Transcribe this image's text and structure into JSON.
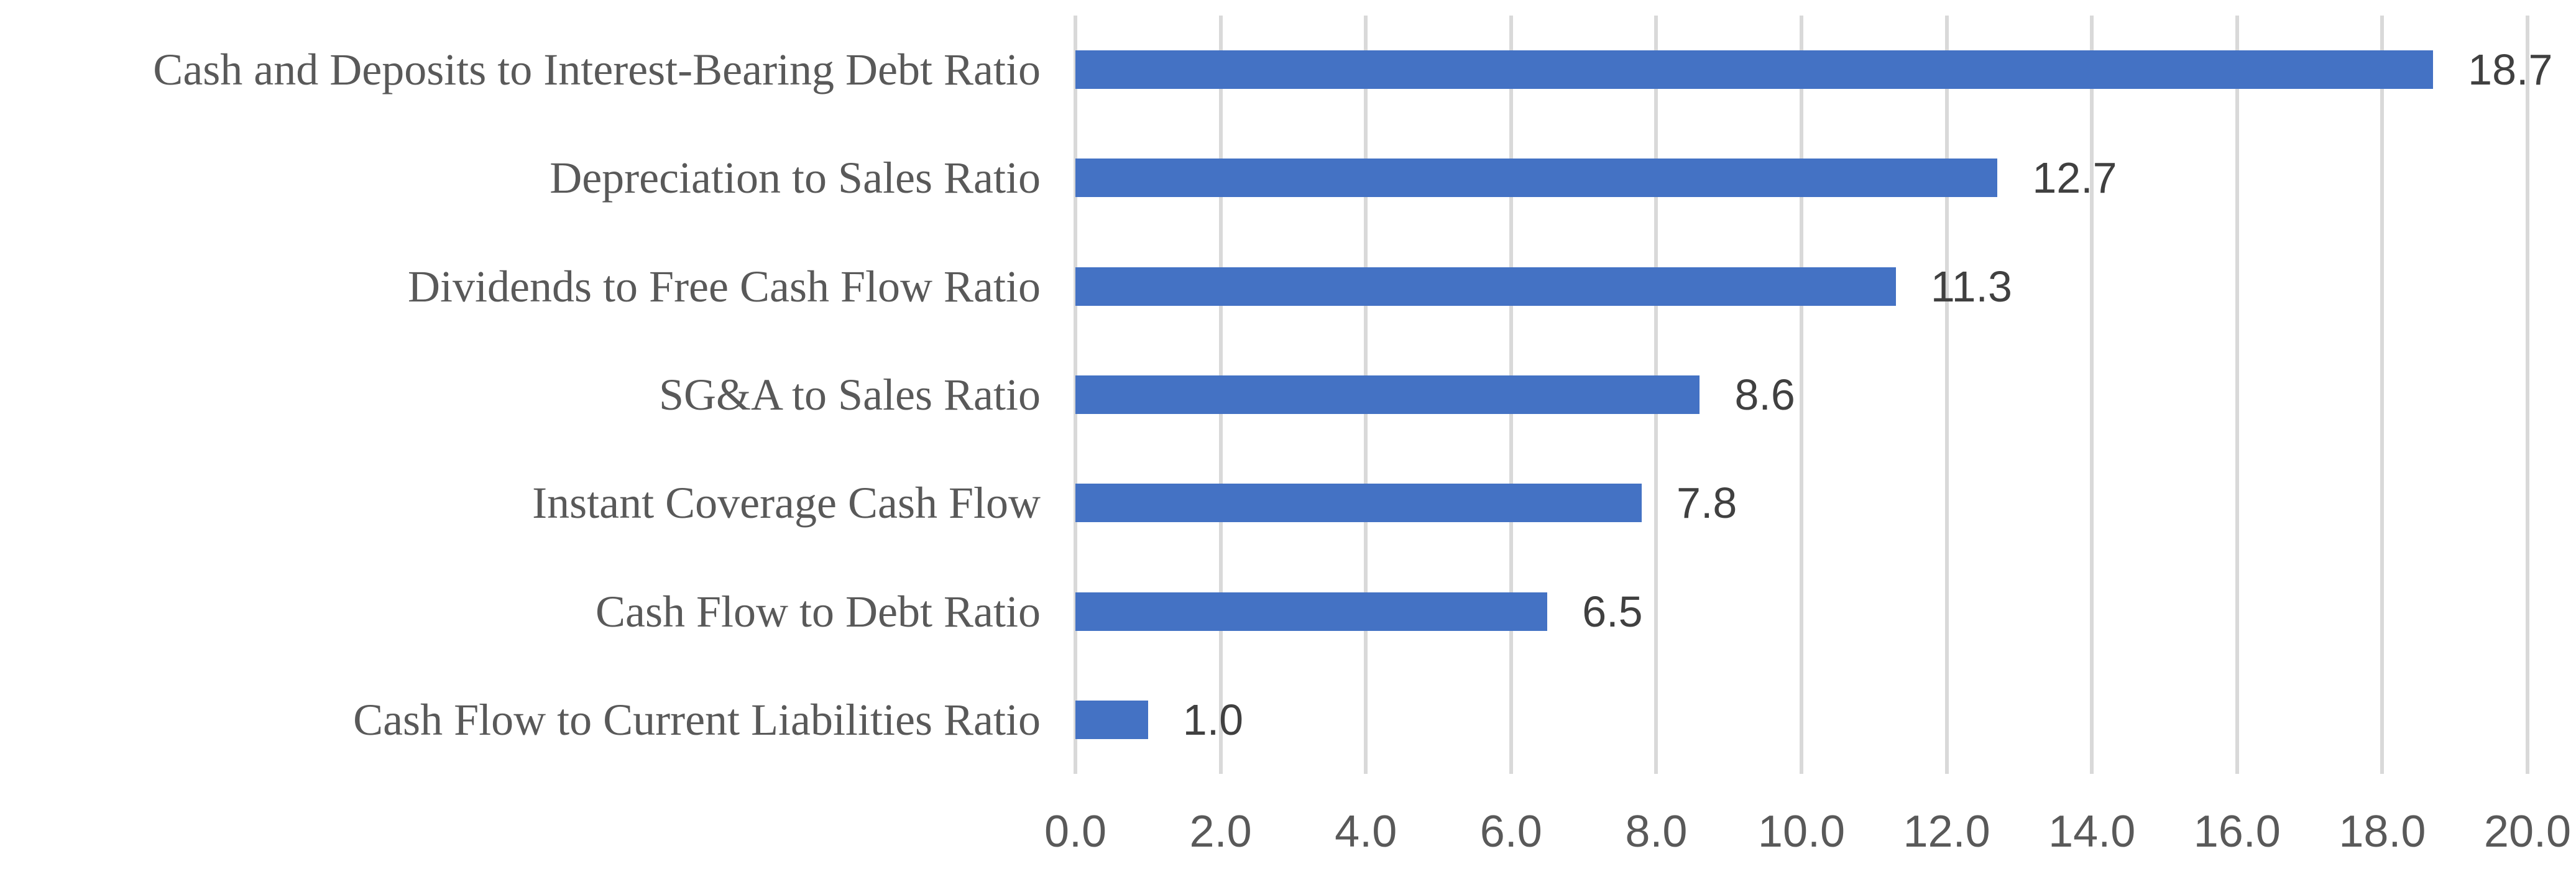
{
  "chart_data": {
    "type": "bar",
    "orientation": "horizontal",
    "title": "",
    "xlabel": "",
    "ylabel": "",
    "legend": "none",
    "grid": "vertical-gridlines",
    "xlim": [
      0,
      20
    ],
    "categories": [
      "Cash and Deposits to Interest-Bearing Debt Ratio",
      "Depreciation to Sales Ratio",
      "Dividends to Free Cash Flow Ratio",
      "SG&A to Sales Ratio",
      "Instant Coverage Cash Flow",
      "Cash Flow to Debt Ratio",
      "Cash Flow to Current Liabilities Ratio"
    ],
    "values": [
      18.7,
      12.7,
      11.3,
      8.6,
      7.8,
      6.5,
      1.0
    ],
    "value_labels": [
      "18.7",
      "12.7",
      "11.3",
      "8.6",
      "7.8",
      "6.5",
      "1.0"
    ],
    "x_ticks": [
      0,
      2,
      4,
      6,
      8,
      10,
      12,
      14,
      16,
      18,
      20
    ],
    "x_tick_labels": [
      "0.0",
      "2.0",
      "4.0",
      "6.0",
      "8.0",
      "10.0",
      "12.0",
      "14.0",
      "16.0",
      "18.0",
      "20.0"
    ],
    "colors": {
      "bar": "#4472C4",
      "gridline": "#D9D9D9",
      "category_label": "#595959",
      "value_label": "#404040",
      "tick_label": "#595959"
    }
  }
}
